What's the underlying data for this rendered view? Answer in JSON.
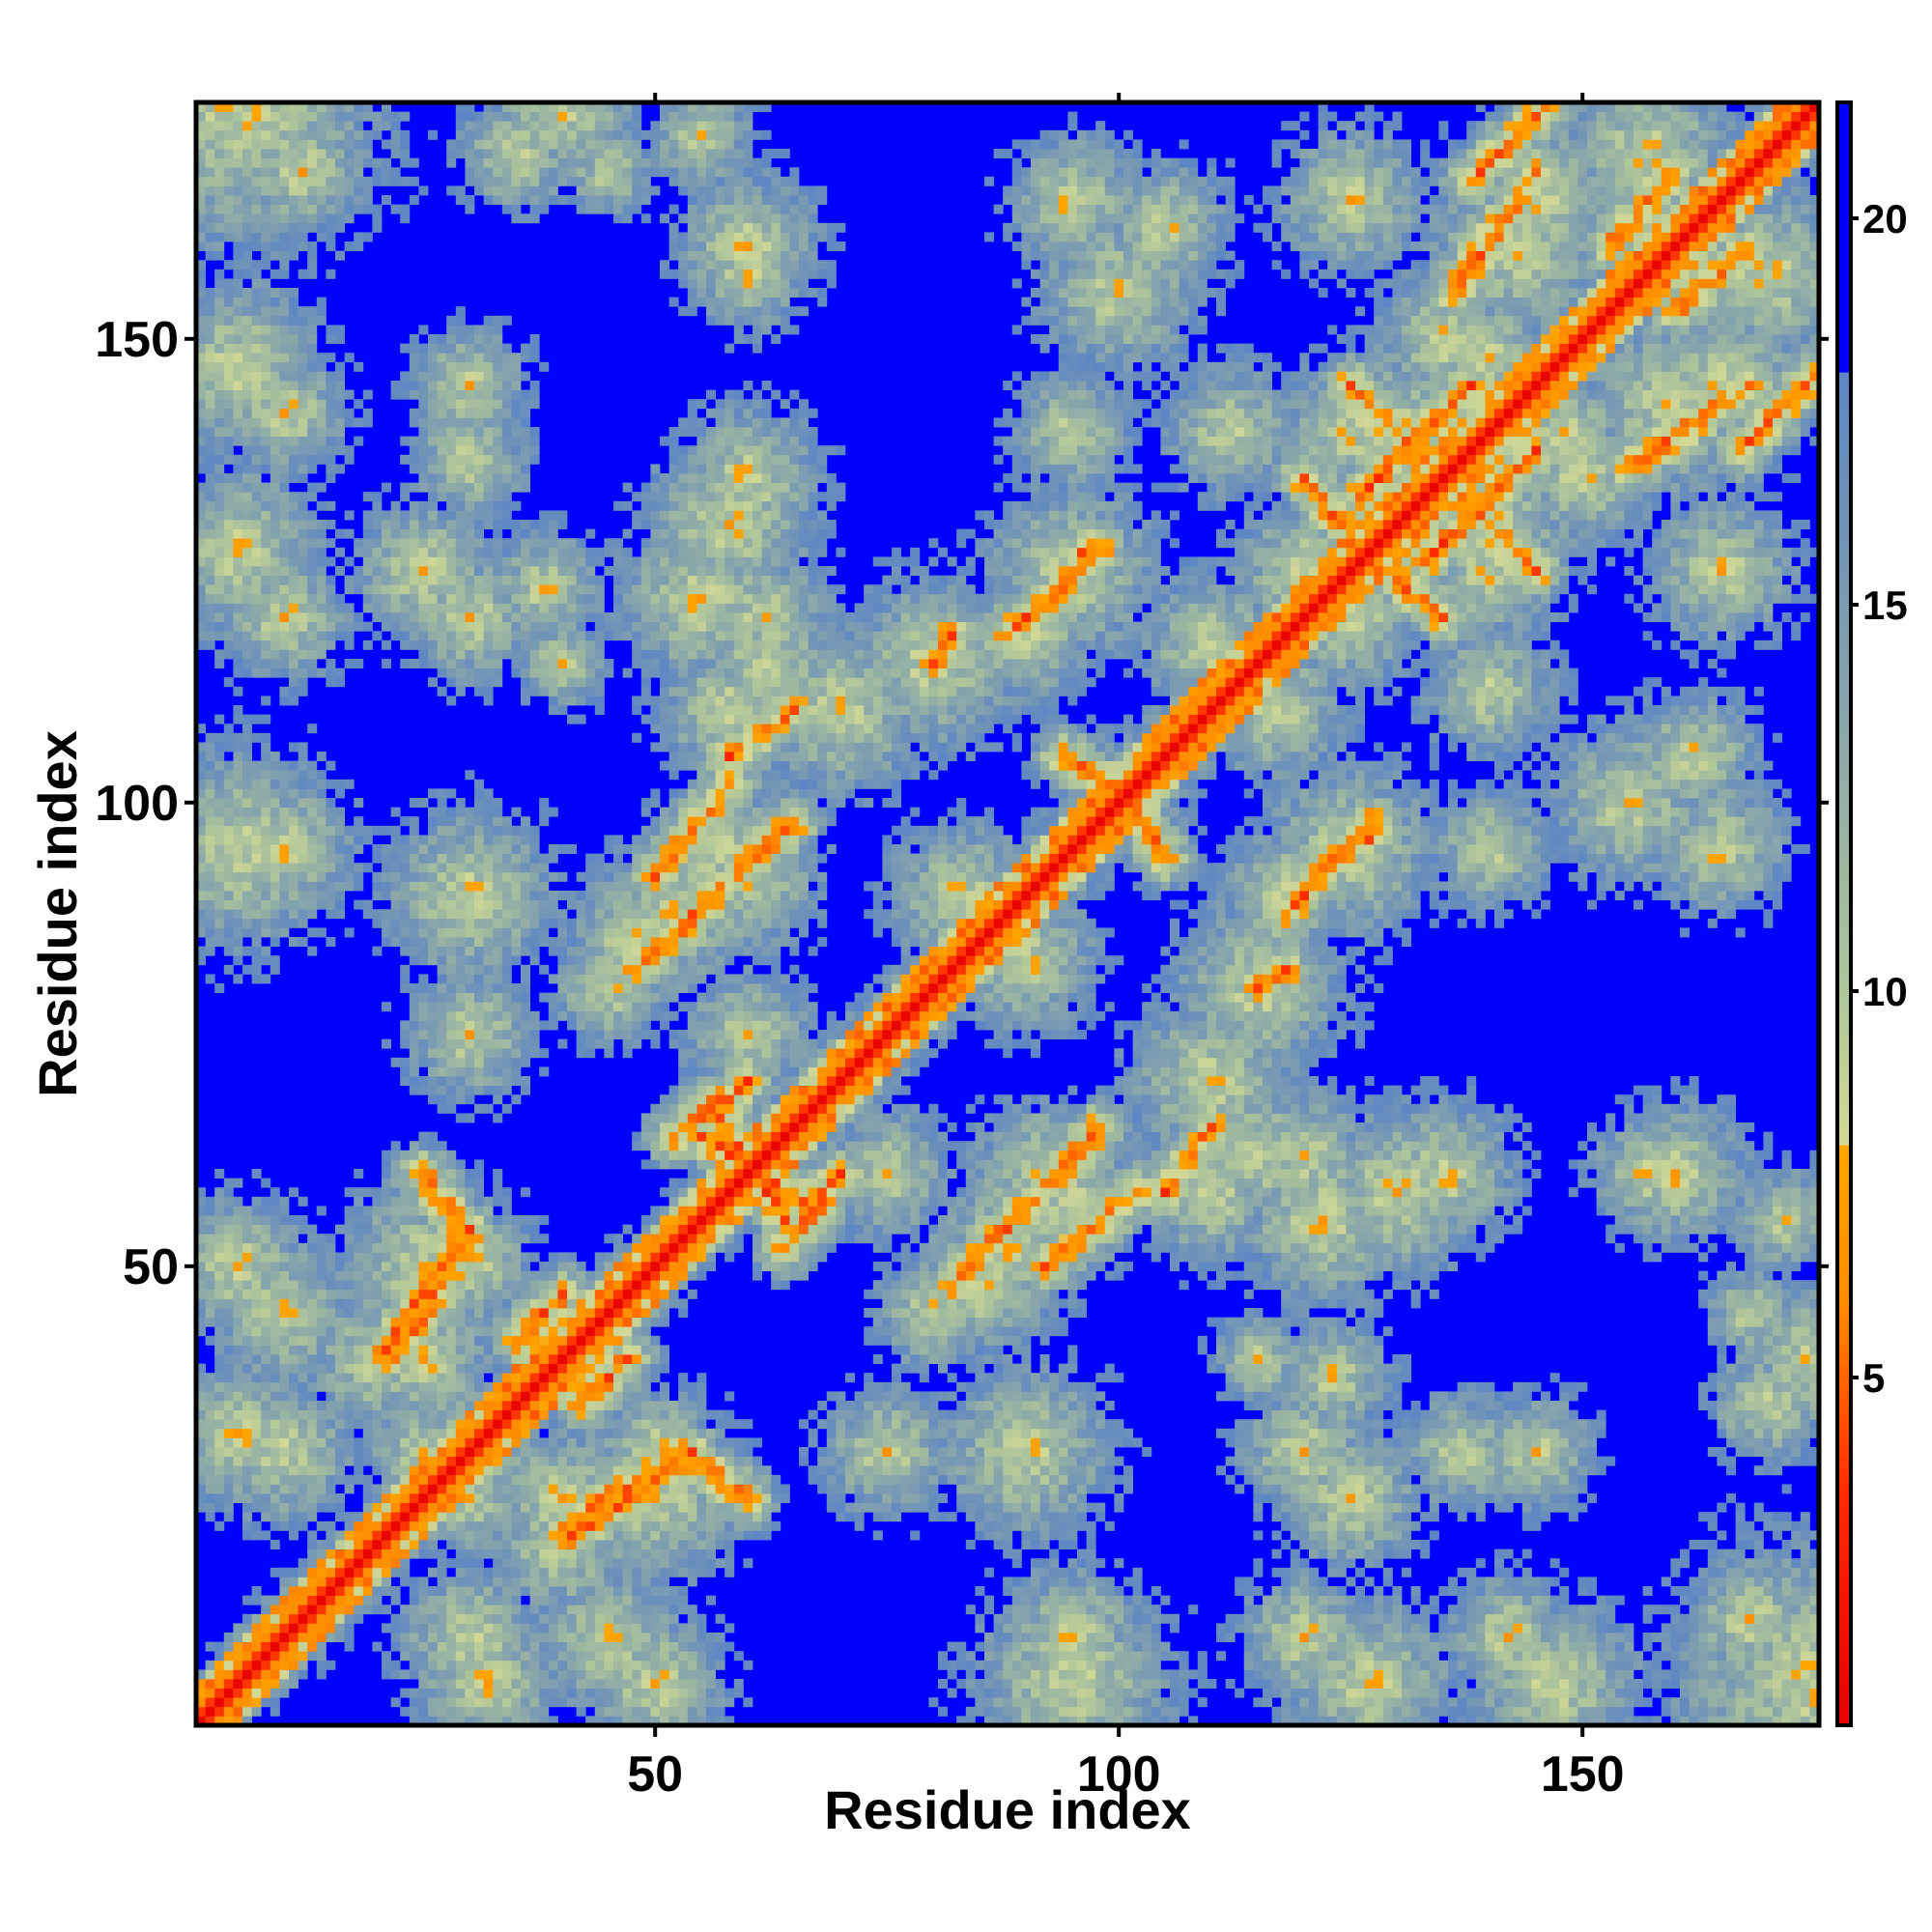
{
  "chart_data": {
    "type": "heatmap",
    "title": "",
    "xlabel": "Residue index",
    "ylabel": "Residue index",
    "n_residues": 175,
    "xlim": [
      0.5,
      175.5
    ],
    "ylim": [
      0.5,
      175.5
    ],
    "x_ticks": [
      50,
      100,
      150
    ],
    "y_ticks": [
      50,
      100,
      150
    ],
    "colorbar_ticks": [
      5,
      10,
      15,
      20
    ],
    "value_range": [
      0.5,
      21.5
    ],
    "colormap": [
      {
        "value": 0.5,
        "color": "#e60000"
      },
      {
        "value": 3.5,
        "color": "#ff2a00"
      },
      {
        "value": 6.0,
        "color": "#ff8c00"
      },
      {
        "value": 8.0,
        "color": "#ffa500"
      },
      {
        "value": 8.01,
        "color": "#d2d896"
      },
      {
        "value": 10.0,
        "color": "#b0c69a"
      },
      {
        "value": 13.0,
        "color": "#8eaaa8"
      },
      {
        "value": 16.0,
        "color": "#6f93b8"
      },
      {
        "value": 18.0,
        "color": "#5f86c4"
      },
      {
        "value": 18.01,
        "color": "#0000ff"
      },
      {
        "value": 21.5,
        "color": "#0000ff"
      }
    ],
    "cutoff": 18.0,
    "contact_blobs": [
      [
        5,
        175,
        20
      ],
      [
        40,
        175,
        10
      ],
      [
        55,
        172,
        7
      ],
      [
        60,
        160,
        10
      ],
      [
        95,
        165,
        9
      ],
      [
        105,
        162,
        9
      ],
      [
        125,
        165,
        10
      ],
      [
        143,
        160,
        13
      ],
      [
        157,
        170,
        12
      ],
      [
        5,
        147,
        12
      ],
      [
        30,
        145,
        8
      ],
      [
        60,
        135,
        10
      ],
      [
        95,
        140,
        8
      ],
      [
        112,
        140,
        9
      ],
      [
        130,
        140,
        12
      ],
      [
        150,
        135,
        10
      ],
      [
        165,
        145,
        12
      ],
      [
        140,
        125,
        10
      ],
      [
        148,
        140,
        9
      ],
      [
        5,
        127,
        12
      ],
      [
        25,
        125,
        10
      ],
      [
        38,
        123,
        8
      ],
      [
        55,
        122,
        12
      ],
      [
        62,
        115,
        10
      ],
      [
        80,
        115,
        12
      ],
      [
        92,
        120,
        8
      ],
      [
        110,
        117,
        10
      ],
      [
        125,
        120,
        10
      ],
      [
        165,
        125,
        9
      ],
      [
        5,
        95,
        14
      ],
      [
        30,
        90,
        12
      ],
      [
        48,
        85,
        10
      ],
      [
        60,
        92,
        10
      ],
      [
        83,
        90,
        10
      ],
      [
        100,
        100,
        9
      ],
      [
        118,
        90,
        9
      ],
      [
        125,
        95,
        12
      ],
      [
        155,
        100,
        11
      ],
      [
        110,
        70,
        12
      ],
      [
        45,
        80,
        8
      ],
      [
        60,
        75,
        9
      ],
      [
        5,
        50,
        10
      ],
      [
        25,
        50,
        12
      ],
      [
        20,
        40,
        10
      ],
      [
        5,
        32,
        10
      ],
      [
        30,
        30,
        10
      ],
      [
        40,
        25,
        10
      ],
      [
        50,
        30,
        9
      ],
      [
        60,
        60,
        9
      ],
      [
        90,
        55,
        10
      ],
      [
        95,
        57,
        10
      ],
      [
        110,
        58,
        10
      ],
      [
        120,
        62,
        9
      ],
      [
        130,
        58,
        12
      ],
      [
        157,
        60,
        8
      ],
      [
        88,
        52,
        11
      ],
      [
        30,
        10,
        10
      ],
      [
        45,
        10,
        10
      ],
      [
        95,
        10,
        10
      ],
      [
        120,
        10,
        9
      ],
      [
        142,
        10,
        9
      ],
      [
        168,
        12,
        9
      ],
      [
        30,
        25,
        8
      ],
      [
        90,
        30,
        9
      ],
      [
        120,
        30,
        9
      ],
      [
        137,
        30,
        8
      ],
      [
        170,
        35,
        8
      ],
      [
        168,
        45,
        6
      ],
      [
        75,
        30,
        9
      ],
      [
        115,
        40,
        6
      ]
    ],
    "contact_ridges": [
      [
        22,
        40,
        30,
        53
      ],
      [
        30,
        53,
        25,
        60
      ],
      [
        40,
        20,
        54,
        30
      ],
      [
        42,
        35,
        47,
        40
      ],
      [
        50,
        92,
        58,
        102
      ],
      [
        56,
        68,
        64,
        55
      ],
      [
        60,
        70,
        52,
        64
      ],
      [
        82,
        48,
        98,
        65
      ],
      [
        88,
        118,
        98,
        127
      ],
      [
        100,
        102,
        105,
        94
      ],
      [
        121,
        92,
        128,
        97
      ],
      [
        126,
        133,
        138,
        145
      ],
      [
        125,
        128,
        135,
        120
      ],
      [
        137,
        133,
        145,
        125
      ],
      [
        138,
        167,
        146,
        175
      ],
      [
        155,
        136,
        168,
        145
      ],
      [
        160,
        153,
        168,
        160
      ],
      [
        115,
        80,
        118,
        82
      ],
      [
        58,
        105,
        65,
        110
      ]
    ]
  }
}
